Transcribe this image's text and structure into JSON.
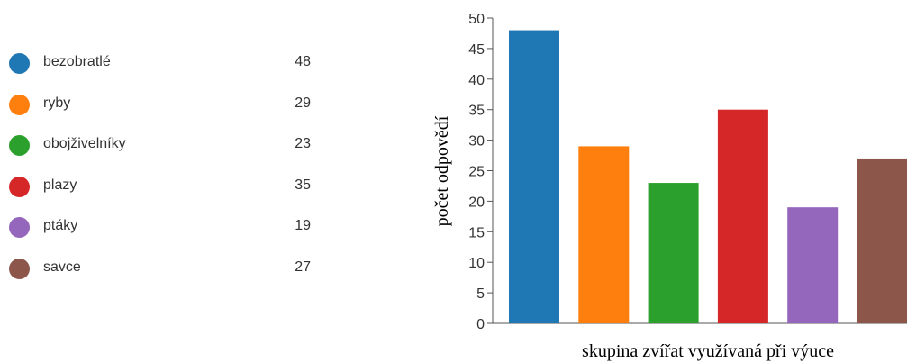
{
  "legend": {
    "items": [
      {
        "label": "bezobratlé",
        "count": "48",
        "color": "#1f77b4"
      },
      {
        "label": "ryby",
        "count": "29",
        "color": "#ff7f0e"
      },
      {
        "label": "obojživelníky",
        "count": "23",
        "color": "#2ca02c"
      },
      {
        "label": "plazy",
        "count": "35",
        "color": "#d62728"
      },
      {
        "label": "ptáky",
        "count": "19",
        "color": "#9467bd"
      },
      {
        "label": "savce",
        "count": "27",
        "color": "#8c564b"
      }
    ]
  },
  "chart_data": {
    "type": "bar",
    "categories": [
      "bezobratlé",
      "ryby",
      "obojživelníky",
      "plazy",
      "ptáky",
      "savce"
    ],
    "values": [
      48,
      29,
      23,
      35,
      19,
      27
    ],
    "colors": [
      "#1f77b4",
      "#ff7f0e",
      "#2ca02c",
      "#d62728",
      "#9467bd",
      "#8c564b"
    ],
    "xlabel": "skupina zvířat využívaná při výuce",
    "ylabel": "počet odpovědí",
    "ylim": [
      0,
      50
    ],
    "yticks": [
      "0",
      "5",
      "10",
      "15",
      "20",
      "25",
      "30",
      "35",
      "40",
      "45",
      "50"
    ],
    "show_category_ticks": false,
    "grid": false
  }
}
